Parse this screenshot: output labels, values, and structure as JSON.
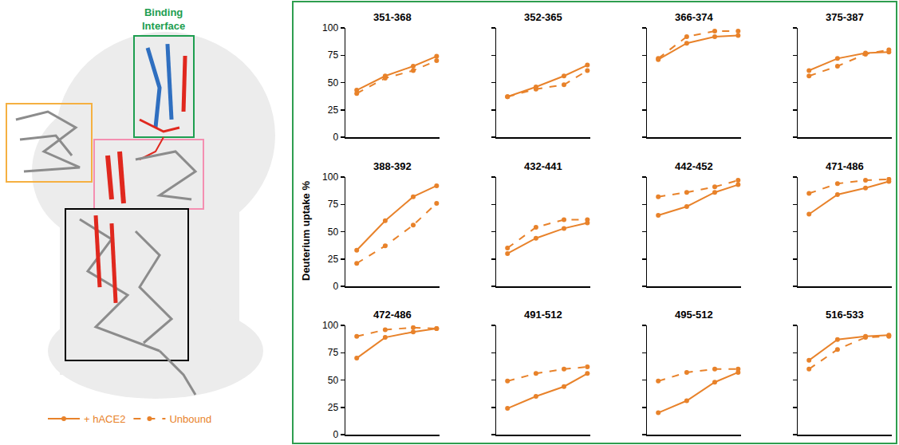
{
  "ylabel": "Deuterium uptake %",
  "illustration": {
    "label": "Binding Interface"
  },
  "legend": "bottom left",
  "chart_data": [
    {
      "type": "line",
      "title": "351-368",
      "x": [
        4,
        130,
        4000,
        70000
      ],
      "xlim": [
        1,
        100000
      ],
      "log": "x",
      "ylim": [
        0,
        100
      ],
      "yticks": [
        0,
        25,
        50,
        75,
        100
      ],
      "grid": false,
      "tick_labels": "y",
      "series": [
        {
          "name": "+ hACE2",
          "color": "#e8822a",
          "line_style": "solid",
          "marker": "circle",
          "values": [
            43,
            56,
            65,
            74
          ]
        },
        {
          "name": "Unbound",
          "color": "#e8822a",
          "line_style": "dash",
          "marker": "circle",
          "values": [
            40,
            54,
            61,
            70
          ]
        }
      ]
    },
    {
      "type": "line",
      "title": "352-365",
      "x": [
        4,
        130,
        4000,
        70000
      ],
      "xlim": [
        1,
        100000
      ],
      "log": "x",
      "ylim": [
        0,
        100
      ],
      "yticks": [
        0,
        25,
        50,
        75,
        100
      ],
      "grid": false,
      "tick_labels": false,
      "series": [
        {
          "name": "+ hACE2",
          "color": "#e8822a",
          "line_style": "solid",
          "marker": "circle",
          "values": [
            37,
            46,
            56,
            66
          ]
        },
        {
          "name": "Unbound",
          "color": "#e8822a",
          "line_style": "dash",
          "marker": "circle",
          "values": [
            37,
            44,
            48,
            61
          ]
        }
      ]
    },
    {
      "type": "line",
      "title": "366-374",
      "x": [
        4,
        130,
        4000,
        70000
      ],
      "xlim": [
        1,
        100000
      ],
      "log": "x",
      "ylim": [
        0,
        100
      ],
      "yticks": [
        0,
        25,
        50,
        75,
        100
      ],
      "grid": false,
      "tick_labels": false,
      "series": [
        {
          "name": "+ hACE2",
          "color": "#e8822a",
          "line_style": "solid",
          "marker": "circle",
          "values": [
            71,
            86,
            92,
            93
          ]
        },
        {
          "name": "Unbound",
          "color": "#e8822a",
          "line_style": "dash",
          "marker": "circle",
          "values": [
            72,
            92,
            97,
            97
          ]
        }
      ]
    },
    {
      "type": "line",
      "title": "375-387",
      "x": [
        4,
        130,
        4000,
        70000
      ],
      "xlim": [
        1,
        100000
      ],
      "log": "x",
      "ylim": [
        0,
        100
      ],
      "yticks": [
        0,
        25,
        50,
        75,
        100
      ],
      "grid": false,
      "tick_labels": false,
      "series": [
        {
          "name": "+ hACE2",
          "color": "#e8822a",
          "line_style": "solid",
          "marker": "circle",
          "values": [
            61,
            72,
            77,
            78
          ]
        },
        {
          "name": "Unbound",
          "color": "#e8822a",
          "line_style": "dash",
          "marker": "circle",
          "values": [
            56,
            65,
            76,
            80
          ]
        }
      ]
    },
    {
      "type": "line",
      "title": "388-392",
      "x": [
        4,
        130,
        4000,
        70000
      ],
      "xlim": [
        1,
        100000
      ],
      "log": "x",
      "ylim": [
        0,
        100
      ],
      "yticks": [
        0,
        25,
        50,
        75,
        100
      ],
      "grid": false,
      "tick_labels": "y",
      "series": [
        {
          "name": "+ hACE2",
          "color": "#e8822a",
          "line_style": "solid",
          "marker": "circle",
          "values": [
            33,
            60,
            82,
            92
          ]
        },
        {
          "name": "Unbound",
          "color": "#e8822a",
          "line_style": "dash",
          "marker": "circle",
          "values": [
            21,
            37,
            56,
            76
          ]
        }
      ]
    },
    {
      "type": "line",
      "title": "432-441",
      "x": [
        4,
        130,
        4000,
        70000
      ],
      "xlim": [
        1,
        100000
      ],
      "log": "x",
      "ylim": [
        0,
        100
      ],
      "yticks": [
        0,
        25,
        50,
        75,
        100
      ],
      "grid": false,
      "tick_labels": false,
      "series": [
        {
          "name": "+ hACE2",
          "color": "#e8822a",
          "line_style": "solid",
          "marker": "circle",
          "values": [
            30,
            44,
            53,
            58
          ]
        },
        {
          "name": "Unbound",
          "color": "#e8822a",
          "line_style": "dash",
          "marker": "circle",
          "values": [
            35,
            54,
            61,
            61
          ]
        }
      ]
    },
    {
      "type": "line",
      "title": "442-452",
      "x": [
        4,
        130,
        4000,
        70000
      ],
      "xlim": [
        1,
        100000
      ],
      "log": "x",
      "ylim": [
        0,
        100
      ],
      "yticks": [
        0,
        25,
        50,
        75,
        100
      ],
      "grid": false,
      "tick_labels": false,
      "series": [
        {
          "name": "+ hACE2",
          "color": "#e8822a",
          "line_style": "solid",
          "marker": "circle",
          "values": [
            65,
            73,
            86,
            93
          ]
        },
        {
          "name": "Unbound",
          "color": "#e8822a",
          "line_style": "dash",
          "marker": "circle",
          "values": [
            82,
            86,
            91,
            97
          ]
        }
      ]
    },
    {
      "type": "line",
      "title": "471-486",
      "x": [
        4,
        130,
        4000,
        70000
      ],
      "xlim": [
        1,
        100000
      ],
      "log": "x",
      "ylim": [
        0,
        100
      ],
      "yticks": [
        0,
        25,
        50,
        75,
        100
      ],
      "grid": false,
      "tick_labels": false,
      "series": [
        {
          "name": "+ hACE2",
          "color": "#e8822a",
          "line_style": "solid",
          "marker": "circle",
          "values": [
            66,
            84,
            90,
            96
          ]
        },
        {
          "name": "Unbound",
          "color": "#e8822a",
          "line_style": "dash",
          "marker": "circle",
          "values": [
            85,
            94,
            97,
            98
          ]
        }
      ]
    },
    {
      "type": "line",
      "title": "472-486",
      "x": [
        4,
        130,
        4000,
        70000
      ],
      "xlim": [
        1,
        100000
      ],
      "log": "x",
      "ylim": [
        0,
        100
      ],
      "yticks": [
        0,
        25,
        50,
        75,
        100
      ],
      "grid": false,
      "tick_labels": "y",
      "series": [
        {
          "name": "+ hACE2",
          "color": "#e8822a",
          "line_style": "solid",
          "marker": "circle",
          "values": [
            70,
            89,
            94,
            97
          ]
        },
        {
          "name": "Unbound",
          "color": "#e8822a",
          "line_style": "dash",
          "marker": "circle",
          "values": [
            90,
            96,
            98,
            97
          ]
        }
      ]
    },
    {
      "type": "line",
      "title": "491-512",
      "x": [
        4,
        130,
        4000,
        70000
      ],
      "xlim": [
        1,
        100000
      ],
      "log": "x",
      "ylim": [
        0,
        100
      ],
      "yticks": [
        0,
        25,
        50,
        75,
        100
      ],
      "grid": false,
      "tick_labels": false,
      "series": [
        {
          "name": "+ hACE2",
          "color": "#e8822a",
          "line_style": "solid",
          "marker": "circle",
          "values": [
            24,
            35,
            44,
            56
          ]
        },
        {
          "name": "Unbound",
          "color": "#e8822a",
          "line_style": "dash",
          "marker": "circle",
          "values": [
            49,
            56,
            60,
            62
          ]
        }
      ]
    },
    {
      "type": "line",
      "title": "495-512",
      "x": [
        4,
        130,
        4000,
        70000
      ],
      "xlim": [
        1,
        100000
      ],
      "log": "x",
      "ylim": [
        0,
        100
      ],
      "yticks": [
        0,
        25,
        50,
        75,
        100
      ],
      "grid": false,
      "tick_labels": false,
      "series": [
        {
          "name": "+ hACE2",
          "color": "#e8822a",
          "line_style": "solid",
          "marker": "circle",
          "values": [
            20,
            31,
            48,
            57
          ]
        },
        {
          "name": "Unbound",
          "color": "#e8822a",
          "line_style": "dash",
          "marker": "circle",
          "values": [
            49,
            57,
            60,
            60
          ]
        }
      ]
    },
    {
      "type": "line",
      "title": "516-533",
      "x": [
        4,
        130,
        4000,
        70000
      ],
      "xlim": [
        1,
        100000
      ],
      "log": "x",
      "ylim": [
        0,
        100
      ],
      "yticks": [
        0,
        25,
        50,
        75,
        100
      ],
      "grid": false,
      "tick_labels": false,
      "series": [
        {
          "name": "+ hACE2",
          "color": "#e8822a",
          "line_style": "solid",
          "marker": "circle",
          "values": [
            68,
            87,
            90,
            91
          ]
        },
        {
          "name": "Unbound",
          "color": "#e8822a",
          "line_style": "dash",
          "marker": "circle",
          "values": [
            60,
            78,
            89,
            90
          ]
        }
      ]
    }
  ]
}
